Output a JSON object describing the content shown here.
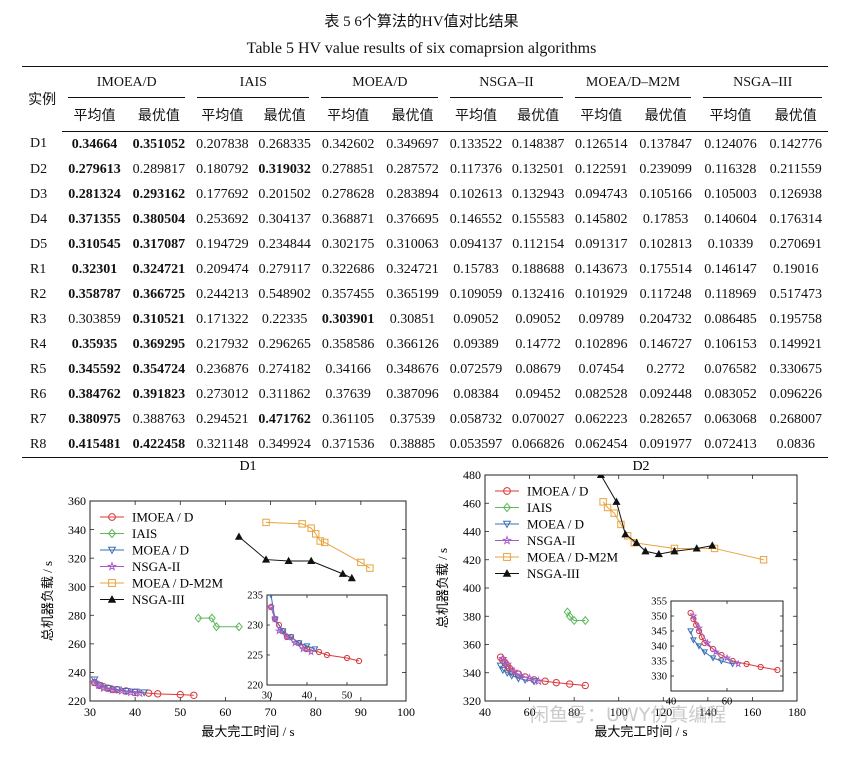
{
  "caption": {
    "zh": "表 5  6个算法的HV值对比结果",
    "en": "Table 5  HV value results of six comaprsion algorithms"
  },
  "table": {
    "instance_header": "实例",
    "algorithms": [
      "IMOEA/D",
      "IAIS",
      "MOEA/D",
      "NSGA–II",
      "MOEA/D–M2M",
      "NSGA–III"
    ],
    "sub_headers": [
      "平均值",
      "最优值"
    ],
    "rows": [
      {
        "id": "D1",
        "cells": [
          "0.34664",
          "0.351052",
          "0.207838",
          "0.268335",
          "0.342602",
          "0.349697",
          "0.133522",
          "0.148387",
          "0.126514",
          "0.137847",
          "0.124076",
          "0.142776"
        ],
        "bold": [
          0,
          1
        ]
      },
      {
        "id": "D2",
        "cells": [
          "0.279613",
          "0.289817",
          "0.180792",
          "0.319032",
          "0.278851",
          "0.287572",
          "0.117376",
          "0.132501",
          "0.122591",
          "0.239099",
          "0.116328",
          "0.211559"
        ],
        "bold": [
          0,
          3
        ]
      },
      {
        "id": "D3",
        "cells": [
          "0.281324",
          "0.293162",
          "0.177692",
          "0.201502",
          "0.278628",
          "0.283894",
          "0.102613",
          "0.132943",
          "0.094743",
          "0.105166",
          "0.105003",
          "0.126938"
        ],
        "bold": [
          0,
          1
        ]
      },
      {
        "id": "D4",
        "cells": [
          "0.371355",
          "0.380504",
          "0.253692",
          "0.304137",
          "0.368871",
          "0.376695",
          "0.146552",
          "0.155583",
          "0.145802",
          "0.17853",
          "0.140604",
          "0.176314"
        ],
        "bold": [
          0,
          1
        ]
      },
      {
        "id": "D5",
        "cells": [
          "0.310545",
          "0.317087",
          "0.194729",
          "0.234844",
          "0.302175",
          "0.310063",
          "0.094137",
          "0.112154",
          "0.091317",
          "0.102813",
          "0.10339",
          "0.270691"
        ],
        "bold": [
          0,
          1
        ]
      },
      {
        "id": "R1",
        "cells": [
          "0.32301",
          "0.324721",
          "0.209474",
          "0.279117",
          "0.322686",
          "0.324721",
          "0.15783",
          "0.188688",
          "0.143673",
          "0.175514",
          "0.146147",
          "0.19016"
        ],
        "bold": [
          0,
          1
        ]
      },
      {
        "id": "R2",
        "cells": [
          "0.358787",
          "0.366725",
          "0.244213",
          "0.548902",
          "0.357455",
          "0.365199",
          "0.109059",
          "0.132416",
          "0.101929",
          "0.117248",
          "0.118969",
          "0.517473"
        ],
        "bold": [
          0,
          1
        ]
      },
      {
        "id": "R3",
        "cells": [
          "0.303859",
          "0.310521",
          "0.171322",
          "0.22335",
          "0.303901",
          "0.30851",
          "0.09052",
          "0.09052",
          "0.09789",
          "0.204732",
          "0.086485",
          "0.195758"
        ],
        "bold": [
          1,
          4
        ]
      },
      {
        "id": "R4",
        "cells": [
          "0.35935",
          "0.369295",
          "0.217932",
          "0.296265",
          "0.358586",
          "0.366126",
          "0.09389",
          "0.14772",
          "0.102896",
          "0.146727",
          "0.106153",
          "0.149921"
        ],
        "bold": [
          0,
          1
        ]
      },
      {
        "id": "R5",
        "cells": [
          "0.345592",
          "0.354724",
          "0.236876",
          "0.274182",
          "0.34166",
          "0.348676",
          "0.072579",
          "0.08679",
          "0.07454",
          "0.2772",
          "0.076582",
          "0.330675"
        ],
        "bold": [
          0,
          1
        ]
      },
      {
        "id": "R6",
        "cells": [
          "0.384762",
          "0.391823",
          "0.273012",
          "0.311862",
          "0.37639",
          "0.387096",
          "0.08384",
          "0.09452",
          "0.082528",
          "0.092448",
          "0.083052",
          "0.096226"
        ],
        "bold": [
          0,
          1
        ]
      },
      {
        "id": "R7",
        "cells": [
          "0.380975",
          "0.388763",
          "0.294521",
          "0.471762",
          "0.361105",
          "0.37539",
          "0.058732",
          "0.070027",
          "0.062223",
          "0.282657",
          "0.063068",
          "0.268007"
        ],
        "bold": [
          0,
          3
        ]
      },
      {
        "id": "R8",
        "cells": [
          "0.415481",
          "0.422458",
          "0.321148",
          "0.349924",
          "0.371536",
          "0.38885",
          "0.053597",
          "0.066826",
          "0.062454",
          "0.091977",
          "0.072413",
          "0.0836"
        ],
        "bold": [
          0,
          1
        ]
      }
    ]
  },
  "colors": {
    "IMOEA/D": "#d9383a",
    "IAIS": "#5cb85c",
    "MOEA/D": "#3a6fb5",
    "NSGA-II": "#a55cc8",
    "MOEA/D-M2M": "#e8a33d",
    "NSGA-III": "#111111"
  },
  "watermark": "闲鱼号：UWY仿真编程",
  "chart_data": [
    {
      "type": "scatter",
      "title": "D1",
      "xlabel": "最大完工时间 / s",
      "ylabel": "总机器负载 / s",
      "xlim": [
        30,
        100
      ],
      "ylim": [
        220,
        360
      ],
      "xticks": [
        30,
        40,
        50,
        60,
        70,
        80,
        90,
        100
      ],
      "yticks": [
        220,
        240,
        260,
        280,
        300,
        320,
        340,
        360
      ],
      "legend": [
        {
          "label": "IMOEA / D",
          "marker": "circle"
        },
        {
          "label": "IAIS",
          "marker": "diamond"
        },
        {
          "label": "MOEA / D",
          "marker": "triangle-down"
        },
        {
          "label": "NSGA-II",
          "marker": "star"
        },
        {
          "label": "MOEA / D-M2M",
          "marker": "square"
        },
        {
          "label": "NSGA-III",
          "marker": "triangle-up"
        }
      ],
      "series": [
        {
          "name": "IMOEA / D",
          "points": [
            [
              31,
              233
            ],
            [
              32,
              231
            ],
            [
              33,
              230
            ],
            [
              34,
              229
            ],
            [
              35,
              228
            ],
            [
              36,
              228
            ],
            [
              38,
              227
            ],
            [
              40,
              226
            ],
            [
              43,
              225.5
            ],
            [
              45,
              225
            ],
            [
              50,
              224.5
            ],
            [
              53,
              224
            ]
          ]
        },
        {
          "name": "IAIS",
          "points": [
            [
              54,
              278
            ],
            [
              57,
              278
            ],
            [
              58,
              272
            ],
            [
              63,
              272
            ]
          ]
        },
        {
          "name": "MOEA / D",
          "points": [
            [
              31,
              235
            ],
            [
              32,
              231
            ],
            [
              34,
              229
            ],
            [
              36,
              228
            ],
            [
              38,
              227
            ],
            [
              40,
              226.5
            ],
            [
              42,
              226
            ]
          ]
        },
        {
          "name": "NSGA-II",
          "points": [
            [
              31,
              233
            ],
            [
              32,
              231
            ],
            [
              33,
              229
            ],
            [
              35,
              228
            ],
            [
              37,
              227
            ],
            [
              39,
              226
            ],
            [
              41,
              225.5
            ]
          ]
        },
        {
          "name": "MOEA / D-M2M",
          "points": [
            [
              69,
              345
            ],
            [
              77,
              344
            ],
            [
              79,
              341
            ],
            [
              80,
              337
            ],
            [
              81,
              332
            ],
            [
              82,
              331
            ],
            [
              90,
              317
            ],
            [
              92,
              313
            ]
          ]
        },
        {
          "name": "NSGA-III",
          "points": [
            [
              63,
              335
            ],
            [
              69,
              319
            ],
            [
              74,
              318
            ],
            [
              79,
              318
            ],
            [
              86,
              309
            ],
            [
              88,
              306
            ]
          ]
        }
      ],
      "inset": {
        "xlim": [
          30,
          60
        ],
        "ylim": [
          220,
          235
        ],
        "xticks": [
          30,
          40,
          50
        ],
        "yticks": [
          220,
          225,
          230,
          235
        ],
        "series": [
          {
            "name": "IMOEA / D",
            "points": [
              [
                31,
                233
              ],
              [
                32,
                231
              ],
              [
                33,
                230
              ],
              [
                34,
                229
              ],
              [
                35,
                228
              ],
              [
                36,
                228
              ],
              [
                38,
                227
              ],
              [
                40,
                226
              ],
              [
                43,
                225.5
              ],
              [
                45,
                225
              ],
              [
                50,
                224.5
              ],
              [
                53,
                224
              ]
            ]
          },
          {
            "name": "MOEA / D",
            "points": [
              [
                31,
                235
              ],
              [
                32,
                231
              ],
              [
                34,
                229
              ],
              [
                36,
                228
              ],
              [
                38,
                227
              ],
              [
                40,
                226.5
              ],
              [
                42,
                226
              ]
            ]
          },
          {
            "name": "NSGA-II",
            "points": [
              [
                31,
                233
              ],
              [
                32,
                231
              ],
              [
                33,
                229
              ],
              [
                35,
                228
              ],
              [
                37,
                227
              ],
              [
                39,
                226
              ],
              [
                41,
                225.5
              ]
            ]
          }
        ]
      }
    },
    {
      "type": "scatter",
      "title": "D2",
      "xlabel": "最大完工时间 / s",
      "ylabel": "总机器负载 / s",
      "xlim": [
        40,
        180
      ],
      "ylim": [
        320,
        480
      ],
      "xticks": [
        40,
        60,
        80,
        100,
        120,
        140,
        160,
        180
      ],
      "yticks": [
        320,
        340,
        360,
        380,
        400,
        420,
        440,
        460,
        480
      ],
      "legend": [
        {
          "label": "IMOEA / D",
          "marker": "circle"
        },
        {
          "label": "IAIS",
          "marker": "diamond"
        },
        {
          "label": "MOEA / D",
          "marker": "triangle-down"
        },
        {
          "label": "NSGA-II",
          "marker": "star"
        },
        {
          "label": "MOEA / D-M2M",
          "marker": "square"
        },
        {
          "label": "NSGA-III",
          "marker": "triangle-up"
        }
      ],
      "series": [
        {
          "name": "IMOEA / D",
          "points": [
            [
              47,
              351
            ],
            [
              48,
              349
            ],
            [
              49,
              347
            ],
            [
              50,
              345
            ],
            [
              51,
              343
            ],
            [
              52,
              341
            ],
            [
              55,
              339
            ],
            [
              58,
              337
            ],
            [
              62,
              335
            ],
            [
              67,
              334
            ],
            [
              72,
              333
            ],
            [
              78,
              332
            ],
            [
              85,
              331
            ]
          ]
        },
        {
          "name": "IAIS",
          "points": [
            [
              77,
              383
            ],
            [
              78,
              380
            ],
            [
              80,
              377
            ],
            [
              85,
              377
            ]
          ]
        },
        {
          "name": "MOEA / D",
          "points": [
            [
              47,
              345
            ],
            [
              48,
              342
            ],
            [
              50,
              340
            ],
            [
              52,
              338
            ],
            [
              55,
              336
            ],
            [
              58,
              335
            ],
            [
              62,
              334
            ]
          ]
        },
        {
          "name": "NSGA-II",
          "points": [
            [
              48,
              350
            ],
            [
              50,
              346
            ],
            [
              53,
              341
            ],
            [
              56,
              338
            ],
            [
              60,
              336
            ],
            [
              64,
              334
            ]
          ]
        },
        {
          "name": "MOEA / D-M2M",
          "points": [
            [
              93,
              461
            ],
            [
              95,
              457
            ],
            [
              98,
              453
            ],
            [
              101,
              445
            ],
            [
              104,
              437
            ],
            [
              107,
              432
            ],
            [
              125,
              428
            ],
            [
              143,
              428
            ],
            [
              165,
              420
            ]
          ]
        },
        {
          "name": "NSGA-III",
          "points": [
            [
              92,
              480
            ],
            [
              99,
              461
            ],
            [
              103,
              438
            ],
            [
              108,
              432
            ],
            [
              112,
              426
            ],
            [
              118,
              424
            ],
            [
              125,
              426
            ],
            [
              135,
              428
            ],
            [
              142,
              430
            ]
          ]
        }
      ],
      "inset": {
        "xlim": [
          40,
          80
        ],
        "ylim": [
          325,
          355
        ],
        "xticks": [
          40,
          60
        ],
        "yticks": [
          330,
          335,
          340,
          345,
          350,
          355
        ],
        "series": [
          {
            "name": "IMOEA / D",
            "points": [
              [
                47,
                351
              ],
              [
                48,
                349
              ],
              [
                49,
                347
              ],
              [
                50,
                345
              ],
              [
                51,
                343
              ],
              [
                52,
                341
              ],
              [
                55,
                339
              ],
              [
                58,
                337
              ],
              [
                62,
                335
              ],
              [
                67,
                334
              ],
              [
                72,
                333
              ],
              [
                78,
                332
              ]
            ]
          },
          {
            "name": "MOEA / D",
            "points": [
              [
                47,
                345
              ],
              [
                48,
                342
              ],
              [
                50,
                340
              ],
              [
                52,
                338
              ],
              [
                55,
                336
              ],
              [
                58,
                335
              ],
              [
                62,
                334
              ]
            ]
          },
          {
            "name": "NSGA-II",
            "points": [
              [
                48,
                350
              ],
              [
                50,
                346
              ],
              [
                53,
                341
              ],
              [
                56,
                338
              ],
              [
                60,
                336
              ],
              [
                64,
                334
              ]
            ]
          }
        ]
      }
    }
  ]
}
